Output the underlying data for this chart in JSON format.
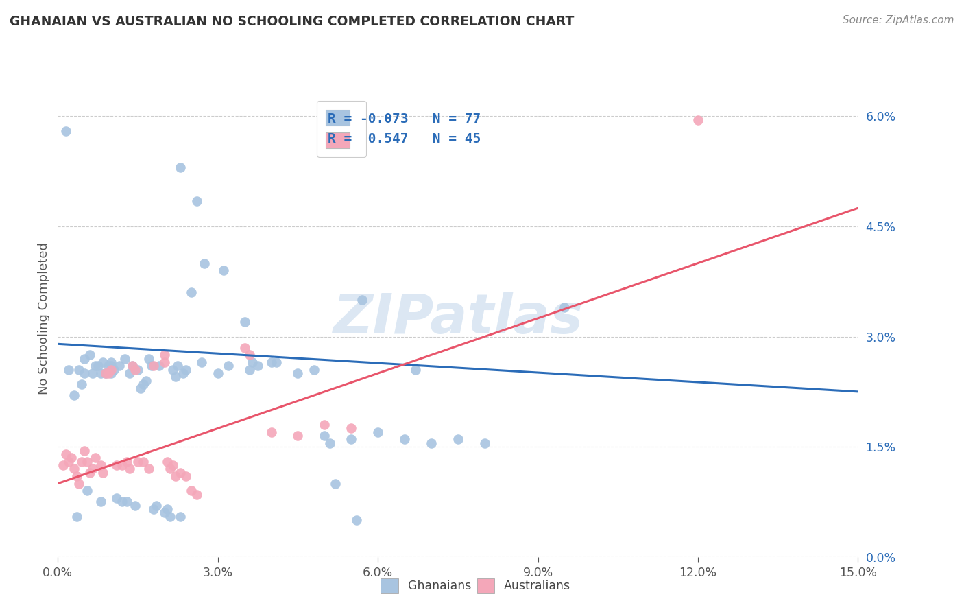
{
  "title": "GHANAIAN VS AUSTRALIAN NO SCHOOLING COMPLETED CORRELATION CHART",
  "source": "Source: ZipAtlas.com",
  "ylabel": "No Schooling Completed",
  "xlim": [
    0.0,
    15.0
  ],
  "ylim": [
    0.0,
    6.5
  ],
  "yticks": [
    0.0,
    1.5,
    3.0,
    4.5,
    6.0
  ],
  "ytick_labels": [
    "0.0%",
    "1.5%",
    "3.0%",
    "4.5%",
    "6.0%"
  ],
  "xticks": [
    0.0,
    3.0,
    6.0,
    9.0,
    12.0,
    15.0
  ],
  "xtick_labels": [
    "0.0%",
    "3.0%",
    "6.0%",
    "9.0%",
    "12.0%",
    "15.0%"
  ],
  "ghanaian_R": -0.073,
  "ghanaian_N": 77,
  "australian_R": 0.547,
  "australian_N": 45,
  "ghanaian_color": "#a8c4e0",
  "australian_color": "#f4a7b9",
  "ghanaian_line_color": "#2b6cb8",
  "australian_line_color": "#e8556b",
  "watermark": "ZIPatlas",
  "ghanaian_points": [
    [
      0.15,
      5.8
    ],
    [
      0.2,
      2.55
    ],
    [
      0.3,
      2.2
    ],
    [
      0.35,
      0.55
    ],
    [
      0.4,
      2.55
    ],
    [
      0.45,
      2.35
    ],
    [
      0.5,
      2.7
    ],
    [
      0.5,
      2.5
    ],
    [
      0.55,
      0.9
    ],
    [
      0.6,
      2.75
    ],
    [
      0.65,
      2.5
    ],
    [
      0.7,
      2.6
    ],
    [
      0.75,
      2.6
    ],
    [
      0.8,
      2.5
    ],
    [
      0.8,
      0.75
    ],
    [
      0.85,
      2.65
    ],
    [
      0.9,
      2.5
    ],
    [
      0.95,
      2.6
    ],
    [
      1.0,
      2.65
    ],
    [
      1.0,
      2.6
    ],
    [
      1.0,
      2.5
    ],
    [
      1.05,
      2.55
    ],
    [
      1.1,
      0.8
    ],
    [
      1.15,
      2.6
    ],
    [
      1.2,
      0.75
    ],
    [
      1.25,
      2.7
    ],
    [
      1.3,
      0.75
    ],
    [
      1.35,
      2.5
    ],
    [
      1.4,
      2.6
    ],
    [
      1.45,
      0.7
    ],
    [
      1.5,
      2.55
    ],
    [
      1.55,
      2.3
    ],
    [
      1.6,
      2.35
    ],
    [
      1.65,
      2.4
    ],
    [
      1.7,
      2.7
    ],
    [
      1.75,
      2.6
    ],
    [
      1.8,
      0.65
    ],
    [
      1.85,
      0.7
    ],
    [
      1.9,
      2.6
    ],
    [
      2.0,
      0.6
    ],
    [
      2.05,
      0.65
    ],
    [
      2.1,
      0.55
    ],
    [
      2.15,
      2.55
    ],
    [
      2.2,
      2.45
    ],
    [
      2.25,
      2.6
    ],
    [
      2.3,
      0.55
    ],
    [
      2.3,
      5.3
    ],
    [
      2.35,
      2.5
    ],
    [
      2.4,
      2.55
    ],
    [
      2.5,
      3.6
    ],
    [
      2.6,
      4.85
    ],
    [
      2.7,
      2.65
    ],
    [
      2.75,
      4.0
    ],
    [
      3.0,
      2.5
    ],
    [
      3.1,
      3.9
    ],
    [
      3.2,
      2.6
    ],
    [
      3.5,
      3.2
    ],
    [
      3.6,
      2.55
    ],
    [
      3.65,
      2.65
    ],
    [
      3.75,
      2.6
    ],
    [
      4.0,
      2.65
    ],
    [
      4.1,
      2.65
    ],
    [
      4.5,
      2.5
    ],
    [
      4.8,
      2.55
    ],
    [
      5.0,
      1.65
    ],
    [
      5.1,
      1.55
    ],
    [
      5.2,
      1.0
    ],
    [
      5.5,
      1.6
    ],
    [
      5.6,
      0.5
    ],
    [
      5.7,
      3.5
    ],
    [
      6.0,
      1.7
    ],
    [
      6.5,
      1.6
    ],
    [
      6.7,
      2.55
    ],
    [
      7.0,
      1.55
    ],
    [
      7.5,
      1.6
    ],
    [
      8.0,
      1.55
    ],
    [
      9.5,
      3.4
    ]
  ],
  "australian_points": [
    [
      0.1,
      1.25
    ],
    [
      0.15,
      1.4
    ],
    [
      0.2,
      1.3
    ],
    [
      0.25,
      1.35
    ],
    [
      0.3,
      1.2
    ],
    [
      0.35,
      1.1
    ],
    [
      0.4,
      1.0
    ],
    [
      0.45,
      1.3
    ],
    [
      0.5,
      1.45
    ],
    [
      0.55,
      1.3
    ],
    [
      0.6,
      1.15
    ],
    [
      0.65,
      1.2
    ],
    [
      0.7,
      1.35
    ],
    [
      0.8,
      1.25
    ],
    [
      0.85,
      1.15
    ],
    [
      0.9,
      2.5
    ],
    [
      0.95,
      2.5
    ],
    [
      1.0,
      2.55
    ],
    [
      1.1,
      1.25
    ],
    [
      1.2,
      1.25
    ],
    [
      1.3,
      1.3
    ],
    [
      1.35,
      1.2
    ],
    [
      1.4,
      2.6
    ],
    [
      1.45,
      2.55
    ],
    [
      1.5,
      1.3
    ],
    [
      1.6,
      1.3
    ],
    [
      1.7,
      1.2
    ],
    [
      1.8,
      2.6
    ],
    [
      2.0,
      2.75
    ],
    [
      2.0,
      2.65
    ],
    [
      2.05,
      1.3
    ],
    [
      2.1,
      1.2
    ],
    [
      2.15,
      1.25
    ],
    [
      2.2,
      1.1
    ],
    [
      2.3,
      1.15
    ],
    [
      2.4,
      1.1
    ],
    [
      2.5,
      0.9
    ],
    [
      2.6,
      0.85
    ],
    [
      3.5,
      2.85
    ],
    [
      3.6,
      2.75
    ],
    [
      4.0,
      1.7
    ],
    [
      4.5,
      1.65
    ],
    [
      5.0,
      1.8
    ],
    [
      5.5,
      1.75
    ],
    [
      12.0,
      5.95
    ]
  ],
  "ghanaian_line": {
    "x0": 0.0,
    "y0": 2.9,
    "x1": 15.0,
    "y1": 2.25
  },
  "australian_line": {
    "x0": 0.0,
    "y0": 1.0,
    "x1": 15.0,
    "y1": 4.75
  },
  "legend_label_color": "#2b6cb8",
  "legend_text_color": "#333333",
  "ytick_color": "#2b6cb8",
  "xtick_color": "#555555",
  "title_color": "#333333",
  "source_color": "#888888",
  "grid_color": "#cccccc",
  "watermark_color": "#c5d8ec"
}
